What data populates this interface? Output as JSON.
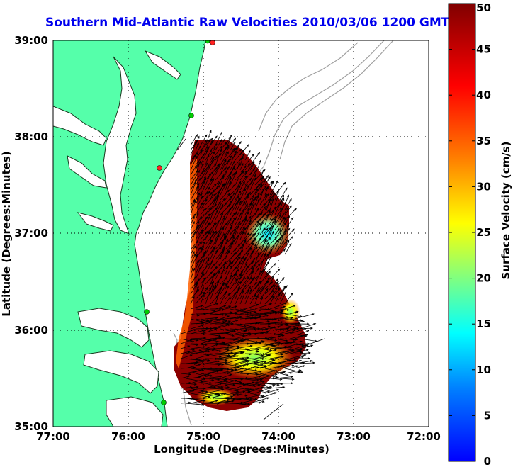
{
  "title": "Southern Mid-Atlantic Raw Velocities 2010/03/06 1200 GMT",
  "xlabel": "Longitude (Degrees:Minutes)",
  "ylabel": "Latitude (Degrees:Minutes)",
  "colorbar": {
    "label": "Surface Velocity (cm/s)",
    "min": 0,
    "max": 50,
    "ticks": [
      "0",
      "5",
      "10",
      "15",
      "20",
      "25",
      "30",
      "35",
      "40",
      "45",
      "50"
    ],
    "colormap": [
      "#0000ff",
      "#0080ff",
      "#00ffff",
      "#80ff80",
      "#ffff00",
      "#ff8000",
      "#ff0000",
      "#800000"
    ]
  },
  "map": {
    "lon_range": [
      -77,
      -72
    ],
    "lat_range": [
      35,
      39
    ],
    "x_ticks": [
      "77:00",
      "76:00",
      "75:00",
      "74:00",
      "73:00",
      "72:00"
    ],
    "y_ticks": [
      "35:00",
      "36:00",
      "37:00",
      "38:00",
      "39:00"
    ],
    "grid": "dotted",
    "land_color": "#55ffaa",
    "water_color": "#ffffff",
    "bathymetry_color": "#a0a0a0",
    "vector_color": "#000000",
    "station_colors": [
      "#00cc00",
      "#ff2222"
    ]
  }
}
